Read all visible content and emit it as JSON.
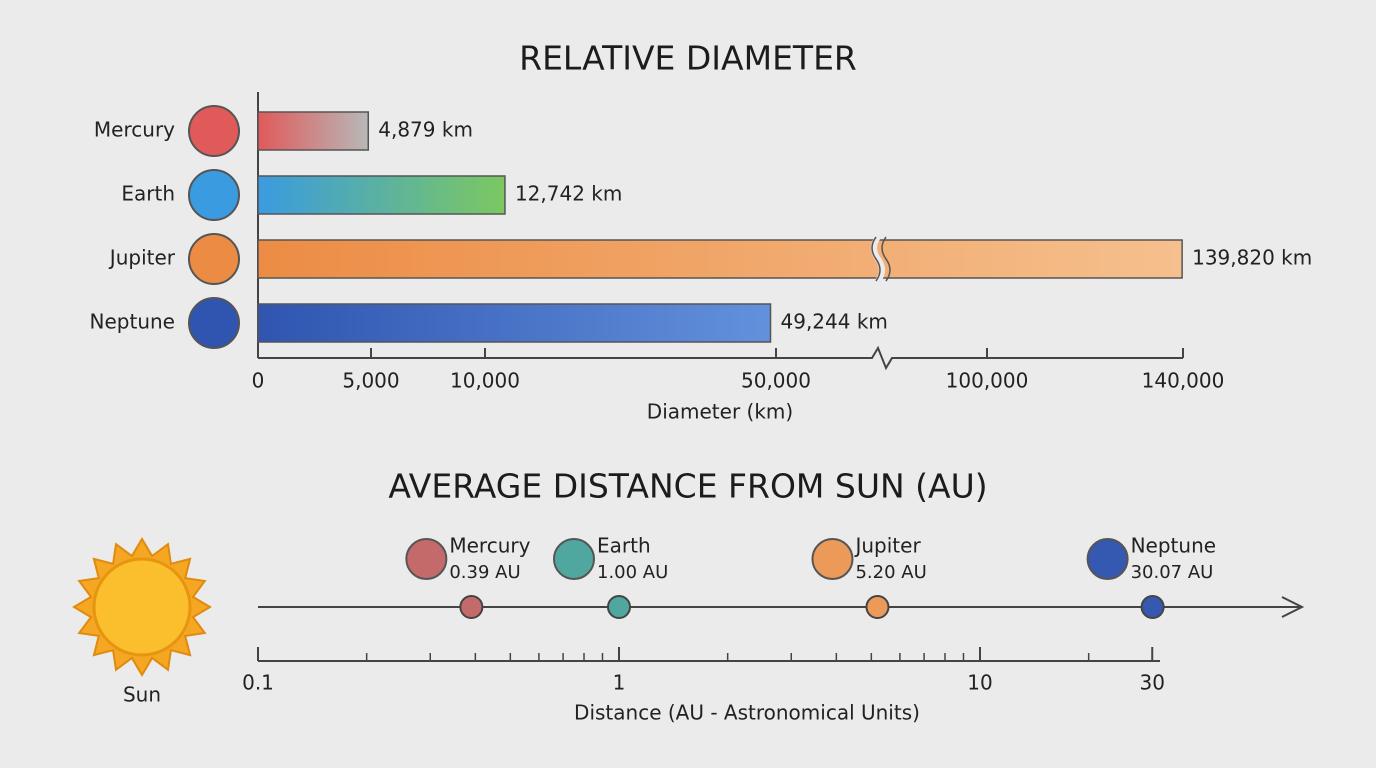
{
  "chart_data": [
    {
      "type": "bar",
      "orientation": "horizontal",
      "title": "RELATIVE DIAMETER",
      "categories": [
        "Mercury",
        "Earth",
        "Jupiter",
        "Neptune"
      ],
      "values": [
        4879,
        12742,
        139820,
        49244
      ],
      "value_labels": [
        "4,879 km",
        "12,742 km",
        "139,820 km",
        "49,244 km"
      ],
      "colors": [
        [
          "#e05a5a",
          "#b8b8b8"
        ],
        [
          "#3a9be0",
          "#7cc860"
        ],
        [
          "#ec8c44",
          "#f5c08e"
        ],
        [
          "#2f55b0",
          "#6391dc"
        ]
      ],
      "xlim": [
        0,
        140000
      ],
      "xticks": [
        0,
        {
          "value": 5000,
          "label": "5,000"
        },
        {
          "value": 10000,
          "label": "10,000"
        },
        {
          "value": 50000,
          "label": "50,000"
        },
        {
          "value": 100000,
          "label": "100,000"
        },
        {
          "value": 140000,
          "label": "140,000"
        }
      ],
      "axis_break": true,
      "xlabel": "Diameter (km)"
    },
    {
      "type": "scatter",
      "title": "AVERAGE DISTANCE FROM SUN (AU)",
      "categories": [
        "Mercury",
        "Earth",
        "Jupiter",
        "Neptune"
      ],
      "x": [
        0.39,
        1.0,
        5.2,
        30.07
      ],
      "value_labels": [
        "0.39 AU",
        "1.00 AU",
        "5.20 AU",
        "30.07 AU"
      ],
      "colors": [
        "#c46a6a",
        "#4fa7a0",
        "#ec9a5a",
        "#3558b0"
      ],
      "xscale": "log",
      "xlim": [
        0.1,
        30
      ],
      "xticks": [
        0.1,
        1,
        10,
        30
      ],
      "xticks_minor": [
        0.2,
        0.3,
        0.4,
        0.5,
        0.6,
        0.7,
        0.8,
        0.9,
        2,
        3,
        4,
        5,
        6,
        7,
        8,
        9,
        20
      ],
      "annotation": "Sun",
      "xlabel": "Distance (AU - Astronomical Units)"
    }
  ]
}
